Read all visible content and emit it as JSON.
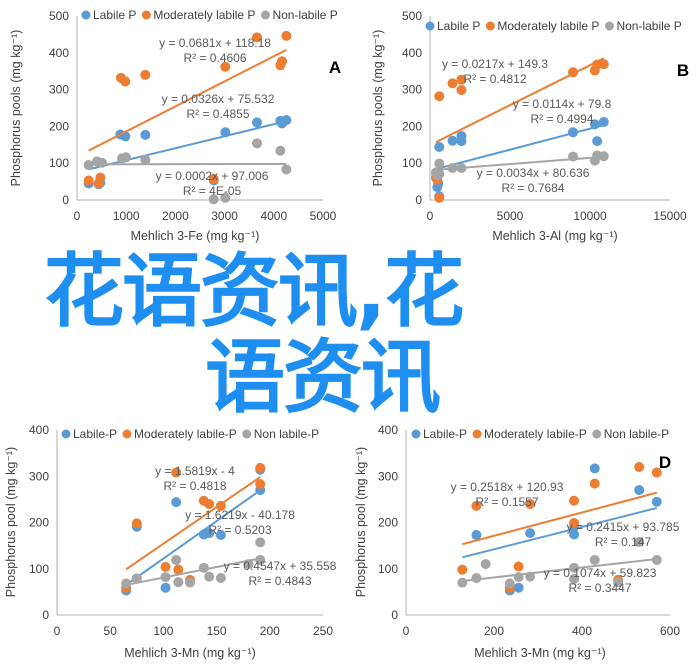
{
  "colors": {
    "labile": "#5b9bd5",
    "moderate": "#ed7d31",
    "nonlabile": "#a5a5a5",
    "axis": "#bfbfbf",
    "text": "#595959",
    "watermark": "#1e8ef0"
  },
  "watermark": {
    "line1": "花语资讯,花",
    "line2": "语资讯"
  },
  "chart_data": [
    {
      "type": "scatter",
      "panel_label": "A",
      "xlabel": "Mehlich 3-Fe (mg kg⁻¹)",
      "ylabel": "Phosphorus pools (mg kg⁻¹)",
      "xlim": [
        0,
        5000
      ],
      "ylim": [
        0,
        500
      ],
      "xticks": [
        0,
        1000,
        2000,
        3000,
        4000,
        5000
      ],
      "yticks": [
        0,
        100,
        200,
        300,
        400,
        500
      ],
      "legend": [
        "Labile P",
        "Moderately labile P",
        "Non-labile P"
      ],
      "legend_position": "top",
      "series": [
        {
          "name": "Labile P",
          "x": [
            237,
            440,
            474,
            880,
            982,
            1389,
            2780,
            3015,
            3659,
            4133,
            4167,
            4255
          ],
          "y": [
            45,
            43,
            47,
            178,
            173,
            177,
            53,
            184,
            211,
            215,
            208,
            217
          ],
          "trend": {
            "equation": "y = 0.0326x + 75.532",
            "r2": "R² = 0.4855",
            "slope": 0.0326,
            "intercept": 75.532,
            "xrange": [
              237,
              4255
            ]
          }
        },
        {
          "name": "Moderately labile P",
          "x": [
            237,
            440,
            474,
            894,
            982,
            1389,
            2778,
            3015,
            3659,
            4133,
            4167,
            4255
          ],
          "y": [
            53,
            45,
            61,
            332,
            322,
            340,
            57,
            362,
            442,
            366,
            377,
            446
          ],
          "trend": {
            "equation": "y = 0.0681x + 118.18",
            "r2": "R² = 0.4606",
            "slope": 0.0681,
            "intercept": 118.18,
            "xrange": [
              237,
              4255
            ]
          }
        },
        {
          "name": "Non-labile P",
          "x": [
            237,
            406,
            508,
            915,
            996,
            1389,
            2778,
            3015,
            3659,
            4133,
            4255
          ],
          "y": [
            95,
            105,
            101,
            113,
            116,
            109,
            2,
            6,
            154,
            134,
            83
          ],
          "trend": {
            "equation": "y = 0.0002x + 97.006",
            "r2": "R² = 4E-05",
            "slope": 0.0002,
            "intercept": 97.006,
            "xrange": [
              237,
              4255
            ]
          }
        }
      ]
    },
    {
      "type": "scatter",
      "panel_label": "B",
      "xlabel": "Mehlich 3-Al (mg kg⁻¹)",
      "ylabel": "Phosphorus pools (mg kg⁻¹)",
      "xlim": [
        0,
        15000
      ],
      "ylim": [
        0,
        500
      ],
      "xticks": [
        0,
        5000,
        10000,
        15000
      ],
      "yticks": [
        0,
        100,
        200,
        300,
        400,
        500
      ],
      "legend": [
        "Labile P",
        "Moderately labile P",
        "Non-labile P"
      ],
      "legend_position": "top",
      "series": [
        {
          "name": "Labile P",
          "x": [
            455,
            517,
            579,
            579,
            1407,
            1966,
            1966,
            8938,
            10303,
            10448,
            10862
          ],
          "y": [
            35,
            45,
            144,
            10,
            161,
            174,
            160,
            184,
            206,
            160,
            212
          ],
          "trend": {
            "equation": "y = 0.0114x + 79.8",
            "r2": "R² = 0.4994",
            "slope": 0.0114,
            "intercept": 79.8,
            "xrange": [
              372,
              10862
            ]
          }
        },
        {
          "name": "Moderately labile P",
          "x": [
            372,
            455,
            579,
            579,
            1407,
            1966,
            1966,
            8938,
            10303,
            10448,
            10862
          ],
          "y": [
            61,
            55,
            282,
            6,
            317,
            327,
            299,
            347,
            352,
            368,
            369
          ],
          "trend": {
            "equation": "y = 0.0217x + 149.3",
            "r2": "R² = 0.4812",
            "slope": 0.0217,
            "intercept": 149.3,
            "xrange": [
              372,
              10862
            ]
          }
        },
        {
          "name": "Non-labile P",
          "x": [
            372,
            455,
            579,
            579,
            1407,
            1966,
            8938,
            10303,
            10448,
            10862
          ],
          "y": [
            75,
            67,
            99,
            71,
            87,
            87,
            118,
            107,
            121,
            119
          ],
          "trend": {
            "equation": "y = 0.0034x + 80.636",
            "r2": "R² = 0.7684",
            "slope": 0.0034,
            "intercept": 80.636,
            "xrange": [
              372,
              10862
            ]
          }
        }
      ]
    },
    {
      "type": "scatter",
      "panel_label": "C",
      "xlabel": "Mehlich 3-Mn (mg kg⁻¹)",
      "ylabel": "Phosphorus pool (mg kg⁻¹)",
      "xlim": [
        0,
        250
      ],
      "ylim": [
        0,
        400
      ],
      "xticks": [
        0,
        50,
        100,
        150,
        200,
        250
      ],
      "yticks": [
        0,
        100,
        200,
        300,
        400
      ],
      "legend": [
        "Labile-P",
        "Moderately labile-P",
        "Non labile-P"
      ],
      "legend_position": "top",
      "series": [
        {
          "name": "Labile-P",
          "x": [
            65,
            75,
            75,
            102,
            112,
            138,
            143,
            154,
            191,
            191
          ],
          "y": [
            53,
            191,
            79,
            59,
            244,
            174,
            177,
            173,
            270,
            314
          ],
          "trend": {
            "equation": "y = 1.6219x - 40.178",
            "r2": "R² = 0.5203",
            "slope": 1.6219,
            "intercept": -40.178,
            "xrange": [
              65,
              191
            ]
          }
        },
        {
          "name": "Moderately labile-P",
          "x": [
            65,
            75,
            102,
            112,
            114,
            125,
            138,
            143,
            154,
            191,
            191
          ],
          "y": [
            59,
            198,
            104,
            308,
            98,
            76,
            247,
            240,
            236,
            318,
            283
          ],
          "trend": {
            "equation": "y = 1.5819x - 4",
            "r2": "R² = 0.4818",
            "slope": 1.5819,
            "intercept": -4,
            "xrange": [
              65,
              191
            ]
          }
        },
        {
          "name": "Non labile-P",
          "x": [
            65,
            75,
            102,
            112,
            114,
            125,
            138,
            143,
            154,
            180,
            191,
            191
          ],
          "y": [
            68,
            79,
            82,
            119,
            71,
            70,
            102,
            83,
            80,
            110,
            119,
            157
          ],
          "trend": {
            "equation": "y = 0.4547x + 35.558",
            "r2": "R² = 0.4843",
            "slope": 0.4547,
            "intercept": 35.558,
            "xrange": [
              65,
              191
            ]
          }
        }
      ]
    },
    {
      "type": "scatter",
      "panel_label": "D",
      "xlabel": "Mehlich 3-Mn (mg kg⁻¹)",
      "ylabel": "Phosphorus pool (mg kg⁻¹)",
      "xlim": [
        0,
        600
      ],
      "ylim": [
        0,
        400
      ],
      "xticks": [
        0,
        200,
        400,
        600
      ],
      "yticks": [
        0,
        100,
        200,
        300,
        400
      ],
      "legend": [
        "Labile-P",
        "Moderately labile-P",
        "Non labile-P"
      ],
      "legend_position": "top",
      "series": [
        {
          "name": "Labile-P",
          "x": [
            160,
            236,
            256,
            282,
            382,
            382,
            429,
            530,
            570
          ],
          "y": [
            173,
            53,
            59,
            177,
            191,
            174,
            317,
            270,
            245
          ],
          "trend": {
            "equation": "y = 0.2415x + 93.785",
            "r2": "R² = 0.147",
            "slope": 0.2415,
            "intercept": 93.785,
            "xrange": [
              128,
              570
            ]
          }
        },
        {
          "name": "Moderately labile-P",
          "x": [
            128,
            160,
            236,
            256,
            282,
            382,
            382,
            429,
            482,
            530,
            570
          ],
          "y": [
            98,
            236,
            59,
            105,
            240,
            247,
            199,
            284,
            76,
            320,
            308
          ],
          "trend": {
            "equation": "y = 0.2518x + 120.93",
            "r2": "R² = 0.1557",
            "slope": 0.2518,
            "intercept": 120.93,
            "xrange": [
              128,
              570
            ]
          }
        },
        {
          "name": "Non labile-P",
          "x": [
            128,
            160,
            181,
            236,
            256,
            282,
            382,
            382,
            429,
            482,
            530,
            570
          ],
          "y": [
            70,
            80,
            110,
            68,
            82,
            83,
            102,
            78,
            119,
            71,
            158,
            119
          ],
          "trend": {
            "equation": "y = 0.1074x + 59.823",
            "r2": "R² = 0.3447",
            "slope": 0.1074,
            "intercept": 59.823,
            "xrange": [
              128,
              570
            ]
          }
        }
      ]
    }
  ]
}
